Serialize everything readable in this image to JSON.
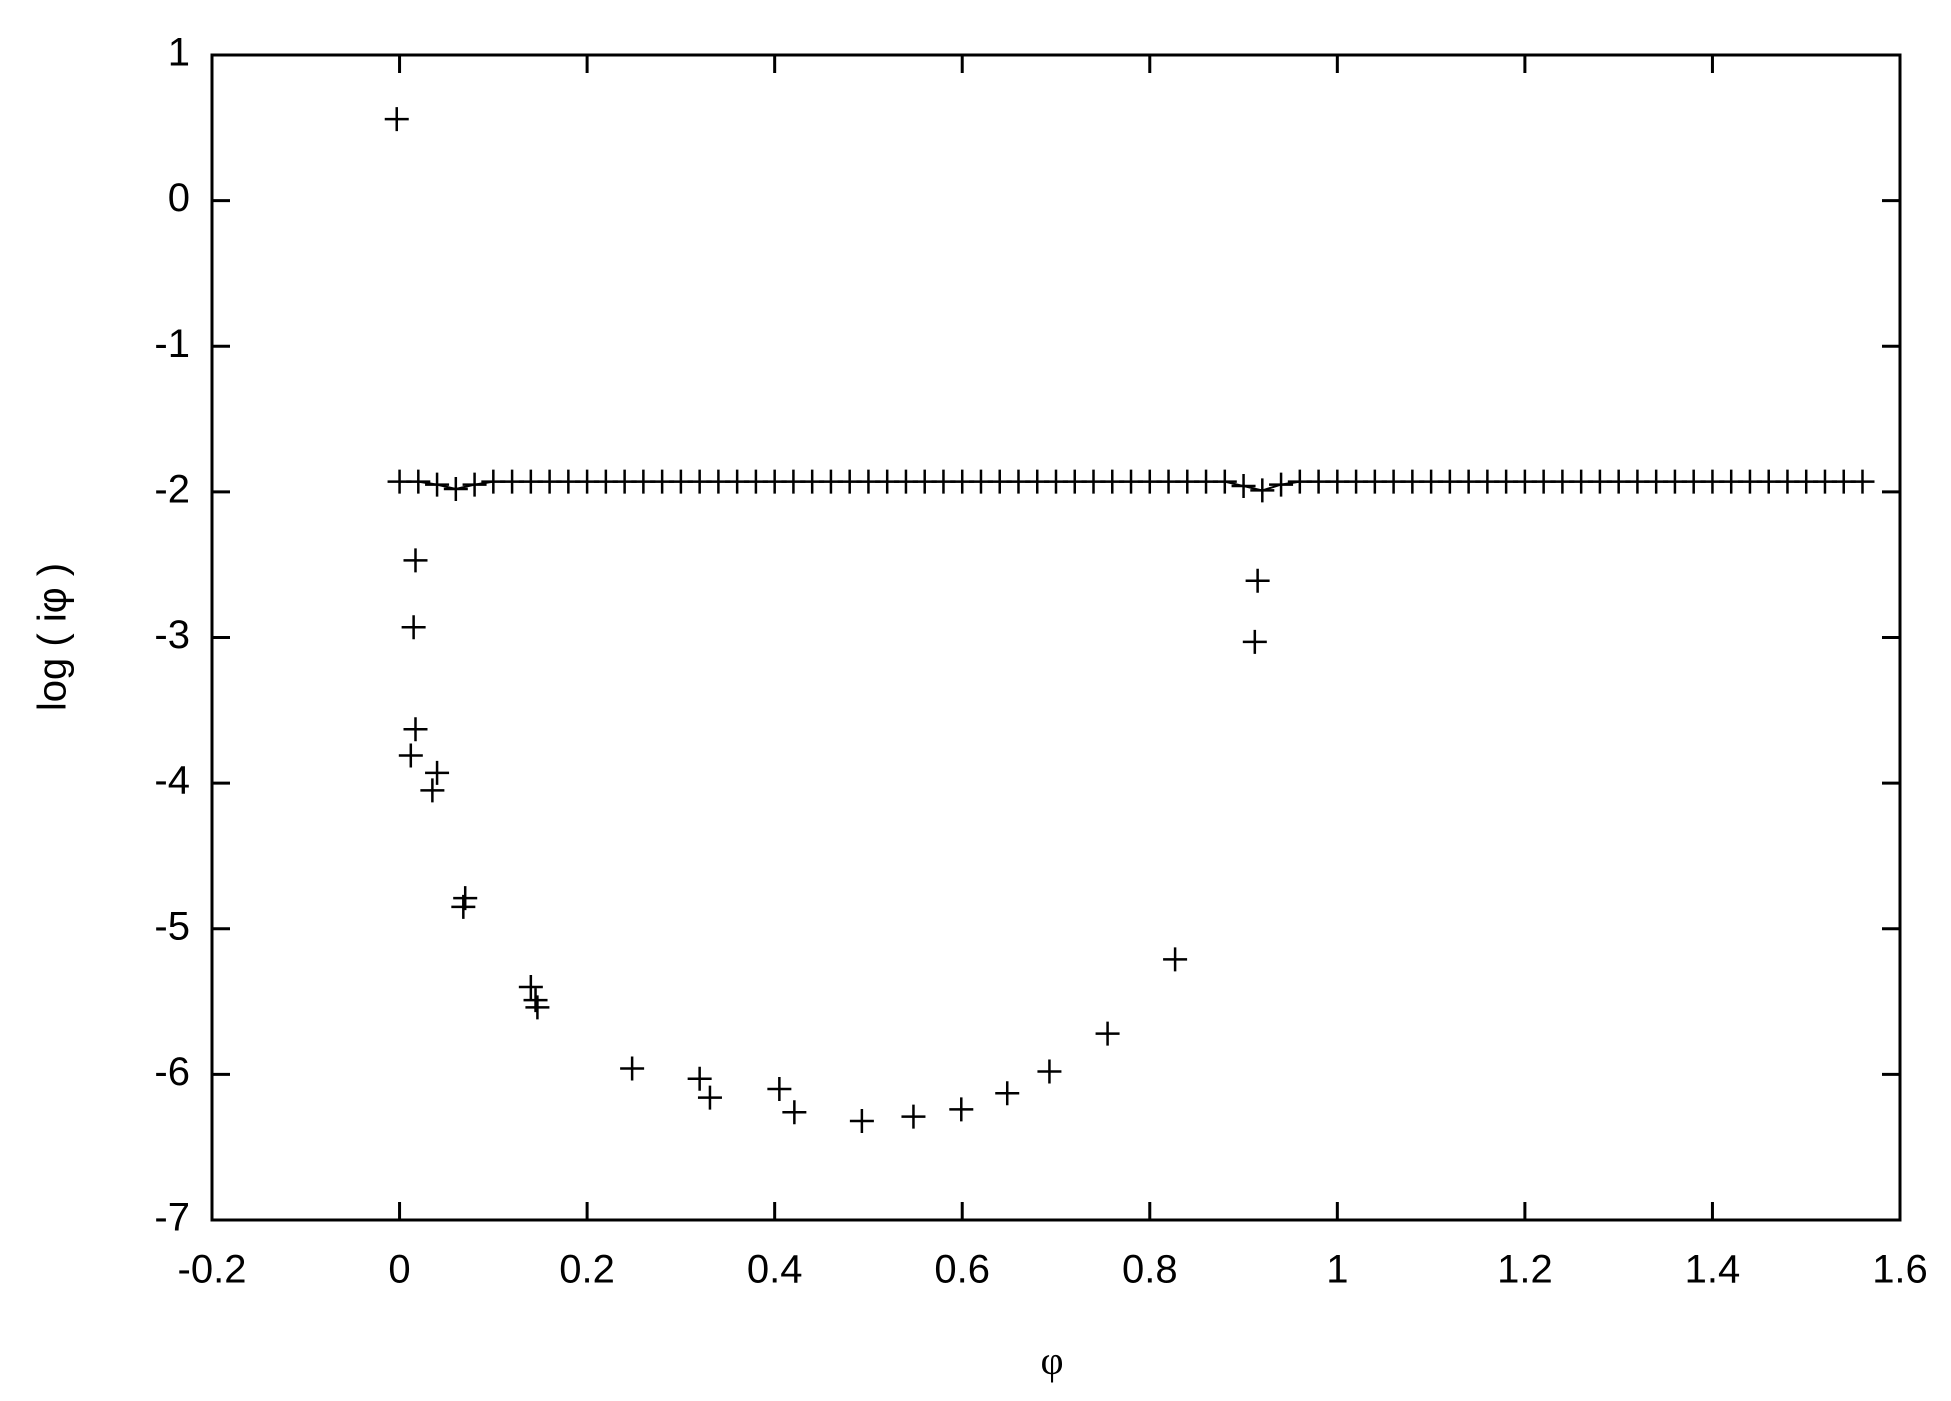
{
  "chart_data": {
    "type": "scatter",
    "xlabel": "φ",
    "ylabel": "log ( iφ )",
    "xlim": [
      -0.2,
      1.6
    ],
    "xticks": [
      -0.2,
      0,
      0.2,
      0.4,
      0.6,
      0.8,
      1,
      1.2,
      1.4,
      1.6
    ],
    "ylim": [
      -7,
      1
    ],
    "yticks": [
      -7,
      -6,
      -5,
      -4,
      -3,
      -2,
      -1,
      0,
      1
    ],
    "series": [
      {
        "color": "#000000",
        "line": true,
        "x": [
          0,
          0.02,
          0.04,
          0.06,
          0.08,
          0.1,
          0.12,
          0.14,
          0.16,
          0.18,
          0.2,
          0.22,
          0.24,
          0.26,
          0.28,
          0.3,
          0.32,
          0.34,
          0.36,
          0.38,
          0.4,
          0.42,
          0.44,
          0.46,
          0.48,
          0.5,
          0.52,
          0.54,
          0.56,
          0.58,
          0.6,
          0.62,
          0.64,
          0.66,
          0.68,
          0.7,
          0.72,
          0.74,
          0.76,
          0.78,
          0.8,
          0.82,
          0.84,
          0.86,
          0.88,
          0.9,
          0.92,
          0.94,
          0.96,
          0.98,
          1,
          1.02,
          1.04,
          1.06,
          1.08,
          1.1,
          1.12,
          1.14,
          1.16,
          1.18,
          1.2,
          1.22,
          1.24,
          1.26,
          1.28,
          1.3,
          1.32,
          1.34,
          1.36,
          1.38,
          1.4,
          1.42,
          1.44,
          1.46,
          1.48,
          1.5,
          1.52,
          1.54,
          1.56
        ],
        "values": [
          -1.93,
          -1.93,
          -1.95,
          -1.98,
          -1.95,
          -1.93,
          -1.93,
          -1.93,
          -1.93,
          -1.93,
          -1.93,
          -1.93,
          -1.93,
          -1.93,
          -1.93,
          -1.93,
          -1.93,
          -1.93,
          -1.93,
          -1.93,
          -1.93,
          -1.93,
          -1.93,
          -1.93,
          -1.93,
          -1.93,
          -1.93,
          -1.93,
          -1.93,
          -1.93,
          -1.93,
          -1.93,
          -1.93,
          -1.93,
          -1.93,
          -1.93,
          -1.93,
          -1.93,
          -1.93,
          -1.93,
          -1.93,
          -1.93,
          -1.93,
          -1.93,
          -1.93,
          -1.96,
          -1.99,
          -1.95,
          -1.93,
          -1.93,
          -1.93,
          -1.93,
          -1.93,
          -1.93,
          -1.93,
          -1.93,
          -1.93,
          -1.93,
          -1.93,
          -1.93,
          -1.93,
          -1.93,
          -1.93,
          -1.93,
          -1.93,
          -1.93,
          -1.93,
          -1.93,
          -1.93,
          -1.93,
          -1.93,
          -1.93,
          -1.93,
          -1.93,
          -1.93,
          -1.93,
          -1.93,
          -1.93,
          -1.93
        ]
      },
      {
        "color": "#000000",
        "line": false,
        "x": [
          -0.003,
          0.017,
          0.015,
          0.017,
          0.012,
          0.04,
          0.035,
          0.07,
          0.068,
          0.14,
          0.145,
          0.147,
          0.248,
          0.32,
          0.331,
          0.405,
          0.421,
          0.493,
          0.548,
          0.599,
          0.648,
          0.693,
          0.755,
          0.827,
          0.915,
          0.912
        ],
        "values": [
          0.56,
          -2.47,
          -2.93,
          -3.63,
          -3.81,
          -3.93,
          -4.05,
          -4.79,
          -4.85,
          -5.4,
          -5.49,
          -5.54,
          -5.96,
          -6.03,
          -6.16,
          -6.1,
          -6.26,
          -6.32,
          -6.29,
          -6.24,
          -6.13,
          -5.98,
          -5.72,
          -5.21,
          -2.61,
          -3.03
        ]
      }
    ]
  }
}
